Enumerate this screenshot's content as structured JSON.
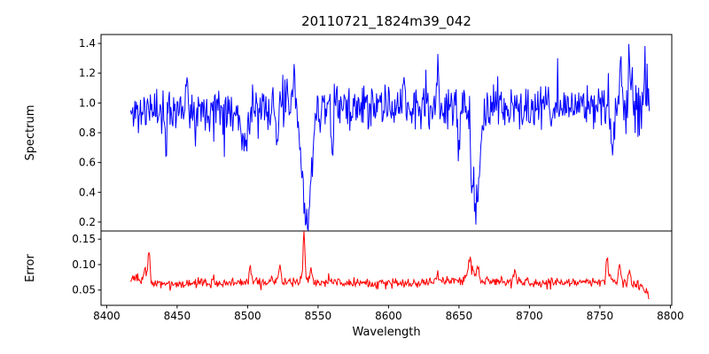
{
  "title": "20110721_1824m39_042",
  "chart_data": [
    {
      "name": "spectrum-panel",
      "type": "line",
      "ylabel": "Spectrum",
      "line_color": "#0000ff",
      "xlim": [
        8396,
        8801
      ],
      "ylim": [
        0.14,
        1.46
      ],
      "x_start": 8417,
      "x_end": 8785,
      "x_step": 0.5,
      "noise_seed": 11,
      "noise_sigma": 0.07,
      "outlier_prob": 0.05,
      "outlier_scale": 1.9,
      "baseline_points": [
        [
          8417,
          0.93
        ],
        [
          8435,
          0.96
        ],
        [
          8470,
          0.97
        ],
        [
          8520,
          0.96
        ],
        [
          8560,
          0.97
        ],
        [
          8620,
          0.97
        ],
        [
          8680,
          0.96
        ],
        [
          8730,
          0.97
        ],
        [
          8785,
          0.99
        ]
      ],
      "noise_scale_points": [
        [
          8417,
          1.0
        ],
        [
          8740,
          1.0
        ],
        [
          8765,
          1.6
        ],
        [
          8785,
          1.6
        ]
      ],
      "absorption_lines": [
        {
          "center": 8498,
          "depth": 0.22,
          "sigma": 2.5
        },
        {
          "center": 8542,
          "depth": 0.75,
          "sigma": 3.2
        },
        {
          "center": 8662,
          "depth": 0.63,
          "sigma": 2.8
        }
      ],
      "spikes": [
        {
          "x": 8442,
          "y": 0.66,
          "sigma": 0.6
        },
        {
          "x": 8457,
          "y": 1.23,
          "sigma": 0.6
        },
        {
          "x": 8521,
          "y": 0.67,
          "sigma": 0.6
        },
        {
          "x": 8533,
          "y": 1.25,
          "sigma": 0.6
        },
        {
          "x": 8560,
          "y": 0.64,
          "sigma": 0.6
        },
        {
          "x": 8611,
          "y": 1.26,
          "sigma": 0.6
        },
        {
          "x": 8635,
          "y": 1.3,
          "sigma": 0.6
        },
        {
          "x": 8650,
          "y": 0.6,
          "sigma": 0.6
        },
        {
          "x": 8759,
          "y": 0.58,
          "sigma": 0.6
        },
        {
          "x": 8765,
          "y": 1.4,
          "sigma": 0.6
        },
        {
          "x": 8771,
          "y": 1.37,
          "sigma": 0.6
        },
        {
          "x": 8782,
          "y": 1.24,
          "sigma": 0.6
        }
      ],
      "yticks": [
        {
          "v": 0.2,
          "label": "0.2"
        },
        {
          "v": 0.4,
          "label": "0.4"
        },
        {
          "v": 0.6,
          "label": "0.6"
        },
        {
          "v": 0.8,
          "label": "0.8"
        },
        {
          "v": 1.0,
          "label": "1.0"
        },
        {
          "v": 1.2,
          "label": "1.2"
        },
        {
          "v": 1.4,
          "label": "1.4"
        }
      ]
    },
    {
      "name": "error-panel",
      "type": "line",
      "ylabel": "Error",
      "xlabel": "Wavelength",
      "line_color": "#ff0000",
      "xlim": [
        8396,
        8801
      ],
      "ylim": [
        0.02,
        0.166
      ],
      "x_start": 8417,
      "x_end": 8785,
      "x_step": 0.5,
      "noise_seed": 23,
      "noise_sigma": 0.0045,
      "outlier_prob": 0.06,
      "outlier_scale": 2.0,
      "baseline_points": [
        [
          8417,
          0.074
        ],
        [
          8428,
          0.066
        ],
        [
          8445,
          0.062
        ],
        [
          8470,
          0.064
        ],
        [
          8500,
          0.065
        ],
        [
          8535,
          0.068
        ],
        [
          8550,
          0.066
        ],
        [
          8600,
          0.063
        ],
        [
          8640,
          0.068
        ],
        [
          8660,
          0.07
        ],
        [
          8700,
          0.064
        ],
        [
          8735,
          0.066
        ],
        [
          8760,
          0.067
        ],
        [
          8778,
          0.06
        ],
        [
          8785,
          0.04
        ]
      ],
      "noise_scale_points": [
        [
          8417,
          1.2
        ],
        [
          8440,
          1.0
        ],
        [
          8785,
          1.0
        ]
      ],
      "absorption_lines": [],
      "spikes": [
        {
          "x": 8427,
          "y": 0.095,
          "sigma": 0.7
        },
        {
          "x": 8430,
          "y": 0.125,
          "sigma": 0.8
        },
        {
          "x": 8502,
          "y": 0.096,
          "sigma": 0.7
        },
        {
          "x": 8523,
          "y": 0.1,
          "sigma": 0.7
        },
        {
          "x": 8540,
          "y": 0.158,
          "sigma": 0.7
        },
        {
          "x": 8545,
          "y": 0.09,
          "sigma": 0.7
        },
        {
          "x": 8635,
          "y": 0.085,
          "sigma": 0.8
        },
        {
          "x": 8658,
          "y": 0.11,
          "sigma": 1.6
        },
        {
          "x": 8663,
          "y": 0.1,
          "sigma": 0.8
        },
        {
          "x": 8690,
          "y": 0.088,
          "sigma": 0.7
        },
        {
          "x": 8755,
          "y": 0.112,
          "sigma": 0.7
        },
        {
          "x": 8764,
          "y": 0.105,
          "sigma": 0.7
        },
        {
          "x": 8771,
          "y": 0.095,
          "sigma": 0.7
        }
      ],
      "yticks": [
        {
          "v": 0.05,
          "label": "0.05"
        },
        {
          "v": 0.1,
          "label": "0.10"
        },
        {
          "v": 0.15,
          "label": "0.15"
        }
      ],
      "xticks": [
        {
          "v": 8400,
          "label": "8400"
        },
        {
          "v": 8450,
          "label": "8450"
        },
        {
          "v": 8500,
          "label": "8500"
        },
        {
          "v": 8550,
          "label": "8550"
        },
        {
          "v": 8600,
          "label": "8600"
        },
        {
          "v": 8650,
          "label": "8650"
        },
        {
          "v": 8700,
          "label": "8700"
        },
        {
          "v": 8750,
          "label": "8750"
        },
        {
          "v": 8800,
          "label": "8800"
        }
      ]
    }
  ],
  "colors": {
    "spectrum_line": "#0000ff",
    "error_line": "#ff0000",
    "axes": "#000000",
    "background": "#ffffff"
  }
}
